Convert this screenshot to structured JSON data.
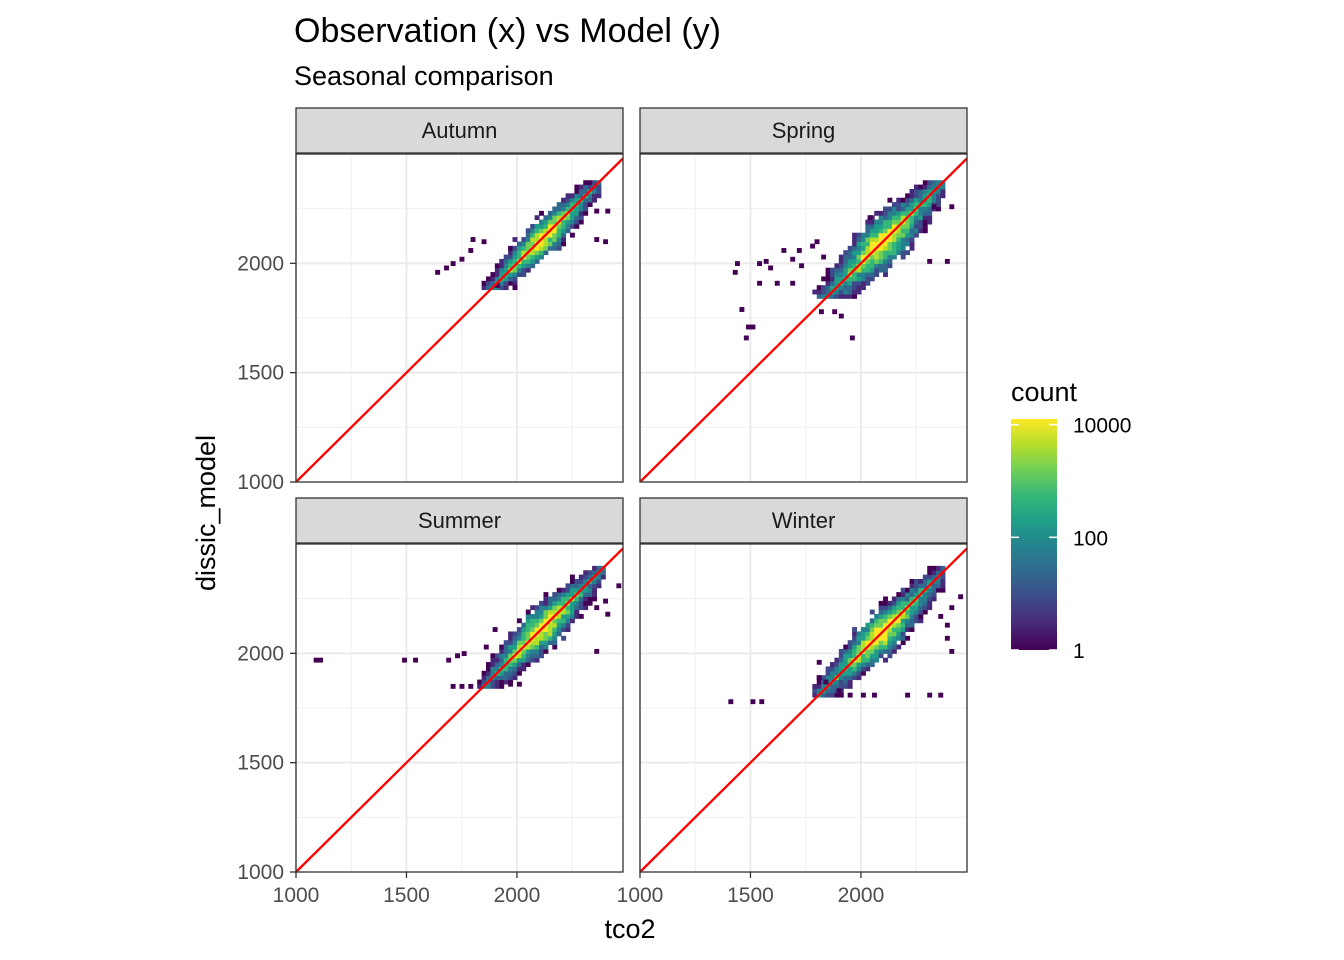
{
  "chart_data": {
    "type": "heatmap",
    "title": "Observation (x) vs Model (y)",
    "subtitle": "Seasonal comparison",
    "xlabel": "tco2",
    "ylabel": "dissic_model",
    "xlim": [
      1000,
      2480
    ],
    "ylim": [
      1000,
      2500
    ],
    "x_ticks": [
      1000,
      1500,
      2000
    ],
    "y_ticks": [
      1000,
      1500,
      2000
    ],
    "reference_line": {
      "slope": 1,
      "intercept": 0,
      "color": "#ff0000"
    },
    "legend": {
      "title": "count",
      "scale": "log10",
      "breaks": [
        1,
        100,
        10000
      ],
      "break_labels": [
        "1",
        "100",
        "10000"
      ],
      "colors": [
        "#440154",
        "#482878",
        "#3e4a89",
        "#31688e",
        "#26828e",
        "#1f9e89",
        "#35b779",
        "#6ece58",
        "#b5de2b",
        "#fde725"
      ]
    },
    "panels": [
      {
        "name": "Autumn",
        "cloud": {
          "xmin": 1830,
          "xmax": 2380,
          "ymin": 1880,
          "ymax": 2380,
          "spread": 95
        },
        "extra_cells": [
          [
            1630,
            1950
          ],
          [
            1670,
            1970
          ],
          [
            1700,
            1990
          ],
          [
            1740,
            2010
          ],
          [
            1780,
            2050
          ],
          [
            1790,
            2100
          ],
          [
            1840,
            2090
          ],
          [
            2350,
            2100
          ],
          [
            2390,
            2090
          ],
          [
            2350,
            2230
          ],
          [
            2400,
            2230
          ],
          [
            1900,
            1890
          ],
          [
            1980,
            1880
          ]
        ]
      },
      {
        "name": "Spring",
        "cloud": {
          "xmin": 1770,
          "xmax": 2380,
          "ymin": 1850,
          "ymax": 2380,
          "spread": 130
        },
        "extra_cells": [
          [
            1420,
            1950
          ],
          [
            1430,
            1990
          ],
          [
            1450,
            1780
          ],
          [
            1480,
            1700
          ],
          [
            1500,
            1700
          ],
          [
            1470,
            1650
          ],
          [
            1530,
            1990
          ],
          [
            1560,
            2000
          ],
          [
            1580,
            1970
          ],
          [
            1530,
            1900
          ],
          [
            1610,
            1900
          ],
          [
            1680,
            2010
          ],
          [
            1710,
            2050
          ],
          [
            1720,
            1980
          ],
          [
            1640,
            2050
          ],
          [
            1770,
            2070
          ],
          [
            1790,
            2090
          ],
          [
            1820,
            2020
          ],
          [
            1680,
            1900
          ],
          [
            1810,
            1770
          ],
          [
            1870,
            1770
          ],
          [
            1900,
            1750
          ],
          [
            1950,
            1650
          ],
          [
            2030,
            2200
          ],
          [
            2300,
            2000
          ],
          [
            2380,
            2000
          ],
          [
            2400,
            2250
          ],
          [
            2320,
            2250
          ]
        ]
      },
      {
        "name": "Summer",
        "cloud": {
          "xmin": 1820,
          "xmax": 2400,
          "ymin": 1840,
          "ymax": 2390,
          "spread": 110
        },
        "extra_cells": [
          [
            1080,
            1960
          ],
          [
            1100,
            1960
          ],
          [
            1480,
            1960
          ],
          [
            1530,
            1960
          ],
          [
            1680,
            1960
          ],
          [
            1720,
            1980
          ],
          [
            1750,
            1990
          ],
          [
            1700,
            1840
          ],
          [
            1740,
            1840
          ],
          [
            1780,
            1840
          ],
          [
            1850,
            2020
          ],
          [
            1890,
            2100
          ],
          [
            1960,
            1850
          ],
          [
            2000,
            1850
          ],
          [
            2350,
            2000
          ],
          [
            2400,
            2170
          ],
          [
            2350,
            2200
          ],
          [
            2390,
            2230
          ],
          [
            2450,
            2300
          ]
        ]
      },
      {
        "name": "Winter",
        "cloud": {
          "xmin": 1780,
          "xmax": 2380,
          "ymin": 1800,
          "ymax": 2390,
          "spread": 115
        },
        "extra_cells": [
          [
            1400,
            1770
          ],
          [
            1500,
            1770
          ],
          [
            1540,
            1770
          ],
          [
            1800,
            1950
          ],
          [
            1800,
            1880
          ],
          [
            1830,
            1860
          ],
          [
            1890,
            1820
          ],
          [
            1940,
            1800
          ],
          [
            2000,
            1800
          ],
          [
            2050,
            1800
          ],
          [
            2200,
            1800
          ],
          [
            2300,
            1800
          ],
          [
            2350,
            1800
          ],
          [
            2400,
            2000
          ],
          [
            2380,
            2060
          ],
          [
            2380,
            2120
          ],
          [
            2350,
            2160
          ],
          [
            2400,
            2200
          ],
          [
            2440,
            2250
          ]
        ]
      }
    ]
  }
}
